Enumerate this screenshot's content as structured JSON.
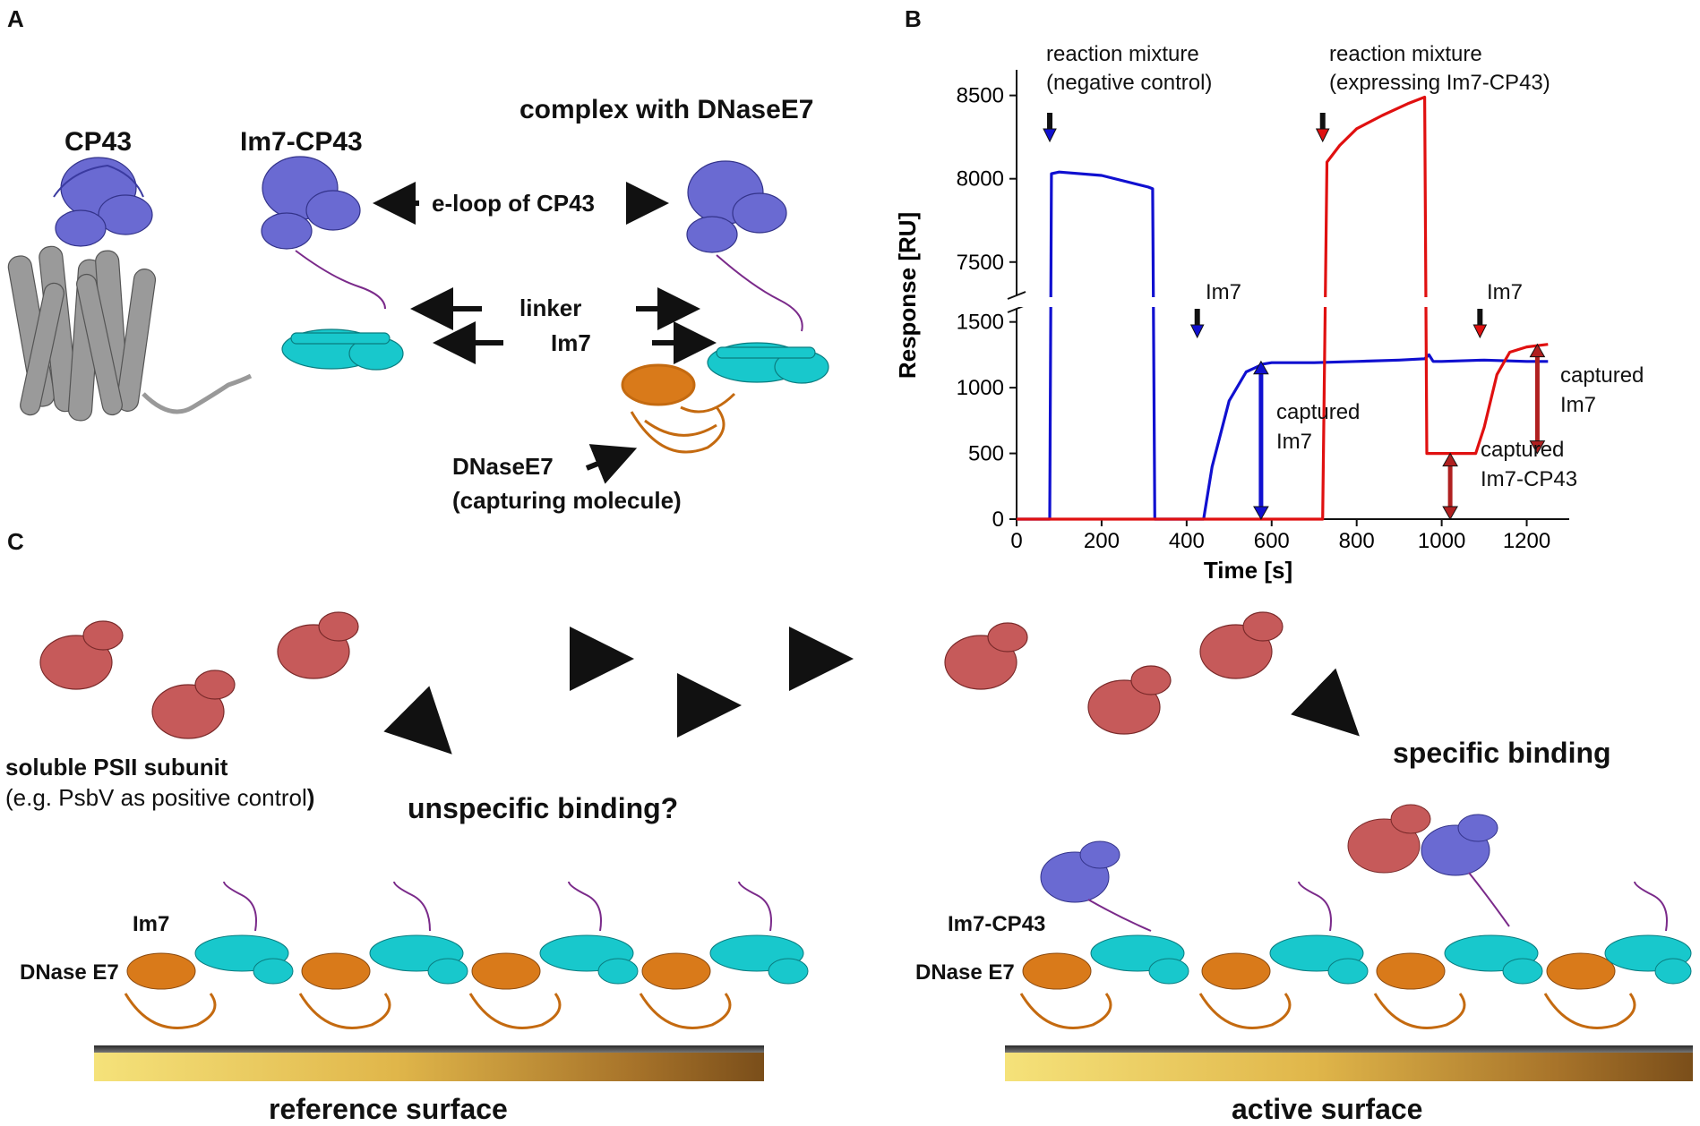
{
  "panel_a": {
    "letter": "A",
    "titles": {
      "cp43": "CP43",
      "im7_cp43": "Im7-CP43",
      "complex": "complex with DNaseE7"
    },
    "labels": {
      "eloop": "e-loop of CP43",
      "linker": "linker",
      "im7": "Im7",
      "dnase": "DNaseE7",
      "capturing": "(capturing molecule)"
    }
  },
  "panel_b": {
    "letter": "B",
    "annotations": {
      "neg_1": "reaction mixture",
      "neg_2": "(negative control)",
      "expr_1": "reaction mixture",
      "expr_2": "(expressing Im7-CP43)",
      "im7_blue": "Im7",
      "im7_red": "Im7",
      "captured_1a": "captured",
      "captured_1b": "Im7",
      "captured_2a": "captured",
      "captured_2b": "Im7",
      "captured_3a": "captured",
      "captured_3b": "Im7-CP43"
    }
  },
  "chart_data": {
    "type": "line",
    "xlabel": "Time [s]",
    "ylabel": "Response [RU]",
    "xlim": [
      0,
      1300
    ],
    "ylim_lower": [
      0,
      1600
    ],
    "ylim_upper": [
      7300,
      8600
    ],
    "axis_break": true,
    "x_ticks": [
      "0",
      "200",
      "400",
      "600",
      "800",
      "1000",
      "1200"
    ],
    "y_ticks_lower": [
      "0",
      "500",
      "1000",
      "1500"
    ],
    "y_ticks_upper": [
      "7500",
      "8000",
      "8500"
    ],
    "series": [
      {
        "color": "#1010d0",
        "x": [
          0,
          78,
          82,
          100,
          200,
          310,
          320,
          325,
          420,
          440,
          460,
          500,
          540,
          580,
          600,
          700,
          800,
          900,
          960,
          970,
          980,
          1000,
          1100,
          1200,
          1250
        ],
        "y": [
          0,
          0,
          8030,
          8040,
          8020,
          7950,
          7940,
          0,
          0,
          0,
          400,
          900,
          1120,
          1180,
          1190,
          1190,
          1200,
          1210,
          1220,
          1250,
          1200,
          1200,
          1210,
          1200,
          1200
        ]
      },
      {
        "color": "#e01010",
        "x": [
          0,
          100,
          300,
          500,
          700,
          720,
          730,
          760,
          800,
          860,
          920,
          960,
          965,
          980,
          1000,
          1050,
          1080,
          1100,
          1130,
          1160,
          1200,
          1250
        ],
        "y": [
          0,
          0,
          0,
          0,
          0,
          0,
          8100,
          8200,
          8300,
          8380,
          8450,
          8490,
          500,
          500,
          500,
          500,
          500,
          700,
          1100,
          1270,
          1310,
          1330
        ]
      }
    ]
  },
  "panel_c": {
    "letter": "C",
    "labels": {
      "soluble": "soluble PSII subunit",
      "example_pre": "(e.g. PsbV as positive control",
      "example_paren": ")",
      "unspecific": "unspecific binding?",
      "specific": "specific binding",
      "im7": "Im7",
      "dnase_left": "DNase E7",
      "im7_cp43": "Im7-CP43",
      "dnase_right": "DNase E7",
      "reference": "reference surface",
      "active": "active surface"
    }
  },
  "colors": {
    "eloop": "#6a6ad2",
    "im7": "#18c8cc",
    "dnase": "#d97a1a",
    "psii": "#c65a5a",
    "cp43_core": "#9a9a9a",
    "linker": "#7a2a8a",
    "surface_light": "#f3d86a",
    "surface_dark": "#8a5a1a"
  }
}
